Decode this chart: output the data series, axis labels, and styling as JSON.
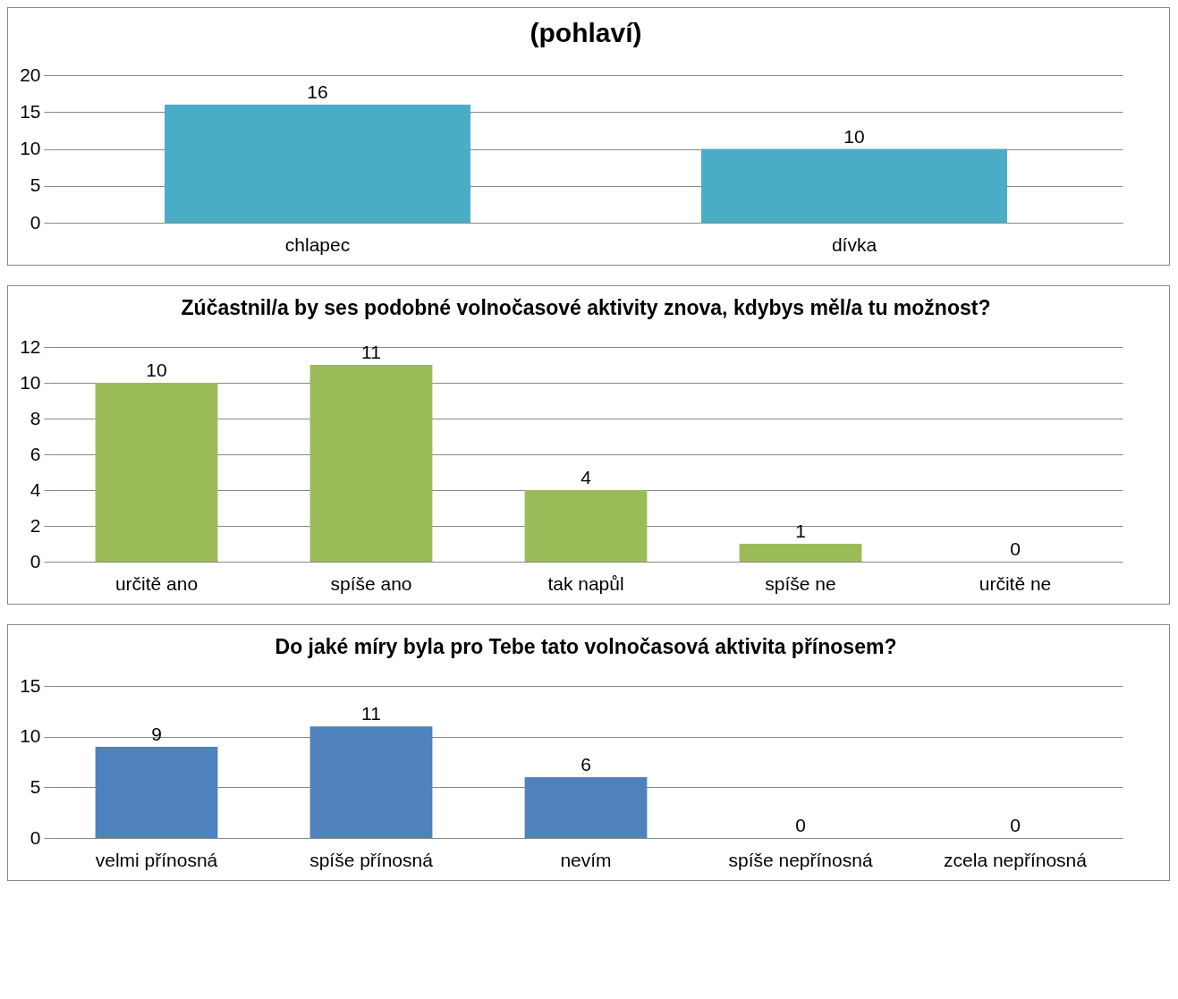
{
  "chart_data": [
    {
      "type": "bar",
      "title": "(pohlaví)",
      "categories": [
        "chlapec",
        "dívka"
      ],
      "values": [
        16,
        10
      ],
      "color": "#4bacc6",
      "ylim": [
        0,
        20
      ],
      "yticks": [
        0,
        5,
        10,
        15,
        20
      ],
      "grid": "y",
      "data_labels": true
    },
    {
      "type": "bar",
      "title": "Zúčastnil/a by ses podobné volnočasové aktivity znova, kdybys měl/a tu možnost?",
      "categories": [
        "určitě ano",
        "spíše ano",
        "tak napůl",
        "spíše ne",
        "určitě ne"
      ],
      "values": [
        10,
        11,
        4,
        1,
        0
      ],
      "color": "#9bbb59",
      "ylim": [
        0,
        12
      ],
      "yticks": [
        0,
        2,
        4,
        6,
        8,
        10,
        12
      ],
      "grid": "y",
      "data_labels": true
    },
    {
      "type": "bar",
      "title": "Do jaké míry byla pro Tebe tato volnočasová aktivita přínosem?",
      "categories": [
        "velmi přínosná",
        "spíše přínosná",
        "nevím",
        "spíše nepřínosná",
        "zcela nepřínosná"
      ],
      "values": [
        9,
        11,
        6,
        0,
        0
      ],
      "color": "#4f81bd",
      "ylim": [
        0,
        15
      ],
      "yticks": [
        0,
        5,
        10,
        15
      ],
      "grid": "y",
      "data_labels": true
    }
  ]
}
